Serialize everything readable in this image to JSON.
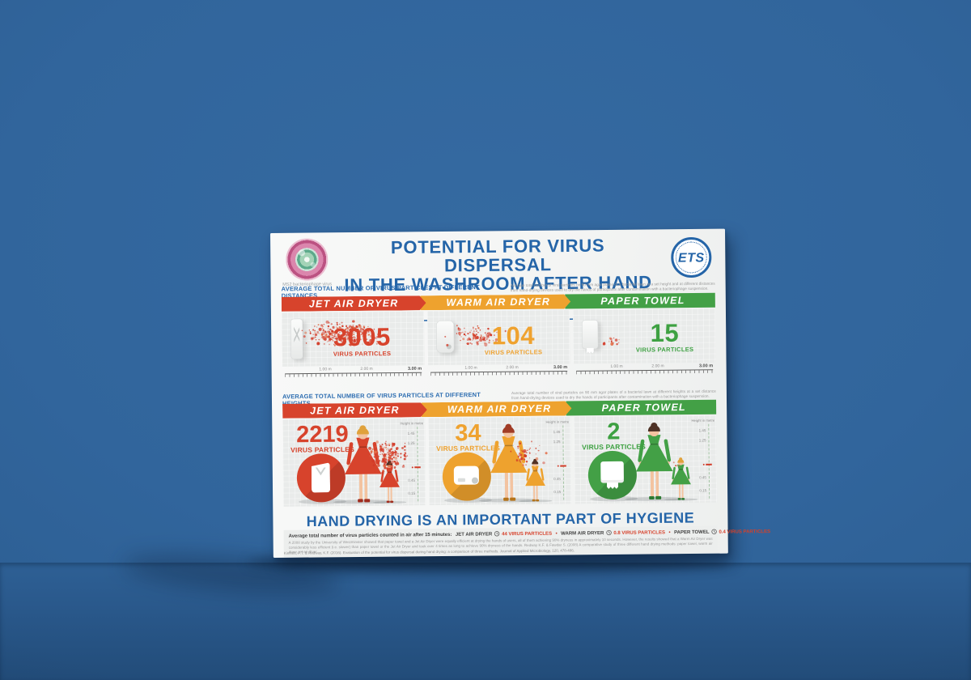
{
  "scene": {
    "wall_color": "#31659c",
    "floor_color": "#24507e"
  },
  "poster": {
    "virus_caption": "MS2 bacteriophage virus",
    "ets_text": "ETS",
    "title_line1": "POTENTIAL FOR VIRUS DISPERSAL",
    "title_line2": "IN THE WASHROOM AFTER HAND DRYING",
    "website": "WWW.EUROPEANTISSUE.COM",
    "columns": [
      {
        "label": "JET AIR DRYER",
        "color": "#d7432c"
      },
      {
        "label": "WARM AIR DRYER",
        "color": "#eea22e"
      },
      {
        "label": "PAPER TOWEL",
        "color": "#43a046"
      }
    ],
    "section_distances": {
      "title": "AVERAGE TOTAL NUMBER OF VIRUS PARTICLES AT DIFFERENT DISTANCES",
      "description": "Average total number of viral particles on 90 mm agar plates of a bacterial lawn at a set height and at different distances from hand-drying devices used to dry the hands of participants after contamination with a bacteriophage suspension.",
      "panels": [
        {
          "value": "3005",
          "label": "VIRUS PARTICLES",
          "dots": 300
        },
        {
          "value": "104",
          "label": "VIRUS PARTICLES",
          "dots": 95
        },
        {
          "value": "15",
          "label": "VIRUS PARTICLES",
          "dots": 14
        }
      ],
      "ruler_labels": [
        "1.00 m",
        "2.00 m",
        "3.00 m"
      ]
    },
    "section_heights": {
      "title": "AVERAGE TOTAL NUMBER OF VIRUS PARTICLES AT DIFFERENT HEIGHTS",
      "description": "Average total number of viral particles on 90 mm agar plates of a bacterial lawn at different heights at a set distance from hand-drying devices used to dry the hands of participants after contamination with a bacteriophage suspension.",
      "panels": [
        {
          "value": "2219",
          "label": "VIRUS PARTICLES",
          "dots": 170
        },
        {
          "value": "34",
          "label": "VIRUS PARTICLES",
          "dots": 48
        },
        {
          "value": "2",
          "label": "VIRUS PARTICLES",
          "dots": 3
        }
      ],
      "height_axis_label": "Height in metre",
      "height_ticks": [
        "1.45",
        "1.25",
        "0.45",
        "0.15"
      ]
    },
    "tagline": "HAND DRYING IS AN IMPORTANT PART OF HYGIENE",
    "footer": {
      "air_lead": "Average total number of virus particles counted in air after 15 minutes:",
      "separator": "•",
      "air_items": [
        {
          "device": "JET AIR DRYER",
          "value": "44 VIRUS PARTICLES"
        },
        {
          "device": "WARM AIR DRYER",
          "value": "0.8 VIRUS PARTICLES"
        },
        {
          "device": "PAPER TOWEL",
          "value": "0.4 VIRUS PARTICLES"
        }
      ],
      "study_note": "A 2008 study by the University of Westminster showed that paper towel and a Jet Air Dryer were equally efficient at drying the hands of users, all of them achieving 90% dryness in approximately 10 seconds. However, the results showed that a Warm Air Dryer was considerably less efficient (i.e. slower) than paper towel or the Jet Air Dryer and took over 4 times as long to achieve 90% dryness of the hands. Redway K.F. & Fawdar S. (2008) A comparative study of three different hand drying methods: paper towel, warm air dryer, jet air dryer",
      "citation": "Kimmitt, P.T. & Redway, K.F. (2016). Evaluation of the potential for virus dispersal during hand drying: a comparison of three methods. Journal of Applied Microbiology, 120, 478-486."
    }
  },
  "chart_data": [
    {
      "type": "bar",
      "title": "Average total number of virus particles at different distances",
      "categories": [
        "Jet air dryer",
        "Warm air dryer",
        "Paper towel"
      ],
      "values": [
        3005,
        104,
        15
      ],
      "value_unit": "virus particles",
      "x_axis": {
        "label": "distance from device (m)",
        "ticks_m": [
          1.0,
          2.0,
          3.0
        ]
      }
    },
    {
      "type": "bar",
      "title": "Average total number of virus particles at different heights",
      "categories": [
        "Jet air dryer",
        "Warm air dryer",
        "Paper towel"
      ],
      "values": [
        2219,
        34,
        2
      ],
      "value_unit": "virus particles",
      "y_axis": {
        "label": "Height in metre",
        "ticks_m": [
          1.45,
          1.25,
          0.45,
          0.15
        ]
      }
    },
    {
      "type": "bar",
      "title": "Average total number of virus particles counted in air after 15 minutes",
      "categories": [
        "Jet air dryer",
        "Warm air dryer",
        "Paper towel"
      ],
      "values": [
        44,
        0.8,
        0.4
      ],
      "value_unit": "virus particles"
    }
  ]
}
